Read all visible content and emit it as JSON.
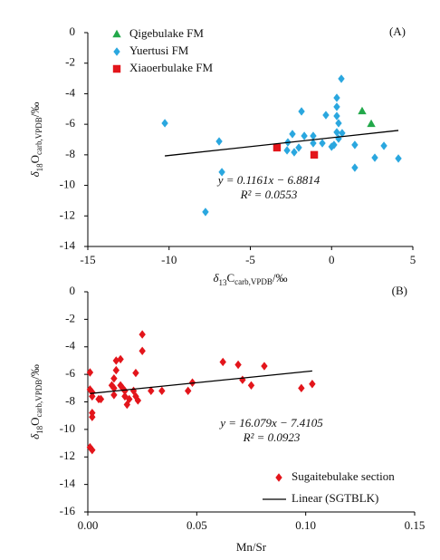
{
  "chart_data": [
    {
      "type": "scatter",
      "panel_label": "(A)",
      "x_label": {
        "delta": "δ",
        "sup": "13",
        "base": "C",
        "sub": "carb,VPDB",
        "unit": "/‰"
      },
      "y_label": {
        "delta": "δ",
        "sup": "18",
        "base": "O",
        "sub": "carb,VPDB",
        "unit": "/‰"
      },
      "xlim": [
        -15,
        5
      ],
      "xticks": [
        -15,
        -10,
        -5,
        0,
        5
      ],
      "ylim": [
        -14,
        0
      ],
      "yticks": [
        0,
        -2,
        -4,
        -6,
        -8,
        -10,
        -12,
        -14
      ],
      "legend": "upper left",
      "series": [
        {
          "name": "Qigebulake FM",
          "color": "#22a84a",
          "marker": "triangle",
          "x": [
            1.88,
            2.44
          ],
          "values": [
            -5.16,
            -5.99
          ]
        },
        {
          "name": "Yuertusi FM",
          "color": "#2aa7df",
          "marker": "diamond",
          "x": [
            -10.26,
            -6.92,
            -6.75,
            -7.76,
            -1.85,
            0.6,
            0.32,
            0.32,
            0.32,
            0.43,
            0.32,
            0.43,
            0.15,
            -0.35,
            -0.57,
            -1.13,
            -1.13,
            -1.68,
            -2.41,
            -2.69,
            -2.02,
            -2.74,
            -2.3,
            0.0,
            0.65,
            1.43,
            1.43,
            2.66,
            3.22,
            4.11
          ],
          "values": [
            -5.93,
            -7.12,
            -9.13,
            -11.74,
            -5.16,
            -3.02,
            -4.27,
            -4.86,
            -5.46,
            -5.93,
            -6.52,
            -6.94,
            -7.35,
            -5.4,
            -7.24,
            -6.76,
            -7.24,
            -6.76,
            -6.64,
            -7.18,
            -7.53,
            -7.71,
            -7.83,
            -7.47,
            -6.58,
            -7.35,
            -8.84,
            -8.19,
            -7.41,
            -8.24
          ]
        },
        {
          "name": "Xiaoerbulake FM",
          "color": "#e3151b",
          "marker": "square",
          "x": [
            -3.36,
            -1.07
          ],
          "values": [
            -7.53,
            -8.0
          ]
        }
      ],
      "trendline": {
        "slope": 0.1161,
        "intercept": -6.8814,
        "equation": "y = 0.1161x − 6.8814",
        "r2": "R² = 0.0553"
      }
    },
    {
      "type": "scatter",
      "panel_label": "(B)",
      "x_label": "Mn/Sr",
      "y_label": {
        "delta": "δ",
        "sup": "18",
        "base": "O",
        "sub": "carb,VPDB",
        "unit": "/‰"
      },
      "xlim": [
        0,
        0.15
      ],
      "xticks": [
        {
          "value": 0,
          "label": "0.00"
        },
        {
          "value": 0.05,
          "label": "0.05"
        },
        {
          "value": 0.1,
          "label": "0.10"
        },
        {
          "value": 0.15,
          "label": "0.15"
        }
      ],
      "ylim": [
        -16,
        0
      ],
      "yticks": [
        0,
        -2,
        -4,
        -6,
        -8,
        -10,
        -12,
        -14,
        -16
      ],
      "legend": "lower right",
      "series": [
        {
          "name": "Sugaitebulake section",
          "color": "#e3151b",
          "marker": "diamond",
          "x": [
            0.001,
            0.001,
            0.002,
            0.002,
            0.002,
            0.002,
            0.001,
            0.002,
            0.005,
            0.006,
            0.011,
            0.012,
            0.012,
            0.012,
            0.013,
            0.013,
            0.015,
            0.015,
            0.016,
            0.017,
            0.017,
            0.018,
            0.019,
            0.021,
            0.022,
            0.022,
            0.023,
            0.025,
            0.025,
            0.029,
            0.034,
            0.046,
            0.048,
            0.062,
            0.069,
            0.071,
            0.075,
            0.081,
            0.098,
            0.103
          ],
          "values": [
            -5.86,
            -7.1,
            -7.3,
            -7.6,
            -9.1,
            -8.8,
            -11.3,
            -11.5,
            -7.8,
            -7.8,
            -6.8,
            -6.3,
            -7.0,
            -7.5,
            -5.0,
            -5.7,
            -4.9,
            -6.8,
            -7.0,
            -7.6,
            -7.2,
            -8.2,
            -7.8,
            -7.2,
            -5.9,
            -7.6,
            -7.9,
            -3.1,
            -4.3,
            -7.2,
            -7.2,
            -7.2,
            -6.6,
            -5.1,
            -5.3,
            -6.4,
            -6.8,
            -5.4,
            -7.0,
            -6.7
          ]
        }
      ],
      "trendline": {
        "name": "Linear (SGTBLK)",
        "slope": 16.079,
        "intercept": -7.4105,
        "equation": "y = 16.079x − 7.4105",
        "r2": "R² = 0.0923"
      }
    }
  ]
}
